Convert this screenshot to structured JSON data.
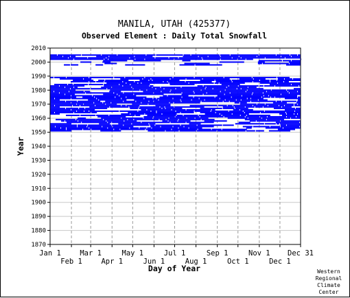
{
  "chart_data": {
    "type": "heatmap",
    "title": "MANILA, UTAH   (425377)",
    "subtitle": "Observed Element : Daily Total Snowfall",
    "xlabel": "Day of Year",
    "ylabel": "Year",
    "xlim": [
      1,
      365
    ],
    "ylim": [
      1870,
      2010
    ],
    "x_ticks_top": [
      {
        "label": "Jan 1",
        "day": 1
      },
      {
        "label": "Mar 1",
        "day": 60
      },
      {
        "label": "May 1",
        "day": 121
      },
      {
        "label": "Jul 1",
        "day": 182
      },
      {
        "label": "Sep 1",
        "day": 244
      },
      {
        "label": "Nov 1",
        "day": 305
      },
      {
        "label": "Dec 31",
        "day": 365
      }
    ],
    "x_ticks_bottom": [
      {
        "label": "Feb 1",
        "day": 32
      },
      {
        "label": "Apr 1",
        "day": 91
      },
      {
        "label": "Jun 1",
        "day": 152
      },
      {
        "label": "Aug 1",
        "day": 213
      },
      {
        "label": "Oct 1",
        "day": 274
      },
      {
        "label": "Dec 1",
        "day": 335
      }
    ],
    "y_ticks": [
      1870,
      1880,
      1890,
      1900,
      1910,
      1920,
      1930,
      1940,
      1950,
      1960,
      1970,
      1980,
      1990,
      2000,
      2010
    ],
    "grid": true,
    "series": [
      {
        "color": "#0000ff",
        "year_start": 1951,
        "year_end": 2005,
        "note_years_with_data": [
          1951,
          1952,
          1953,
          1954,
          1955,
          1956,
          1957,
          1958,
          1959,
          1960,
          1961,
          1962,
          1963,
          1964,
          1965,
          1966,
          1967,
          1968,
          1969,
          1970,
          1971,
          1972,
          1973,
          1974,
          1975,
          1976,
          1977,
          1978,
          1979,
          1980,
          1981,
          1982,
          1983,
          1984,
          1985,
          1986,
          1987,
          1988,
          1989,
          2002,
          2003,
          2004,
          2005,
          1998,
          1999,
          2000,
          2001
        ]
      }
    ],
    "coverage_bands": [
      {
        "year_from": 1951,
        "year_to": 1989,
        "day_from": 1,
        "day_to": 365,
        "density": 0.8
      },
      {
        "year_from": 1998,
        "year_to": 2001,
        "day_from": 1,
        "day_to": 365,
        "density": 0.35
      },
      {
        "year_from": 2002,
        "year_to": 2005,
        "day_from": 1,
        "day_to": 365,
        "density": 0.9
      }
    ],
    "gap_years": [
      1990,
      1991,
      1992,
      1993,
      1994,
      1995,
      1996,
      1997
    ]
  },
  "credit": [
    "Western",
    "Regional",
    "Climate",
    "Center"
  ]
}
